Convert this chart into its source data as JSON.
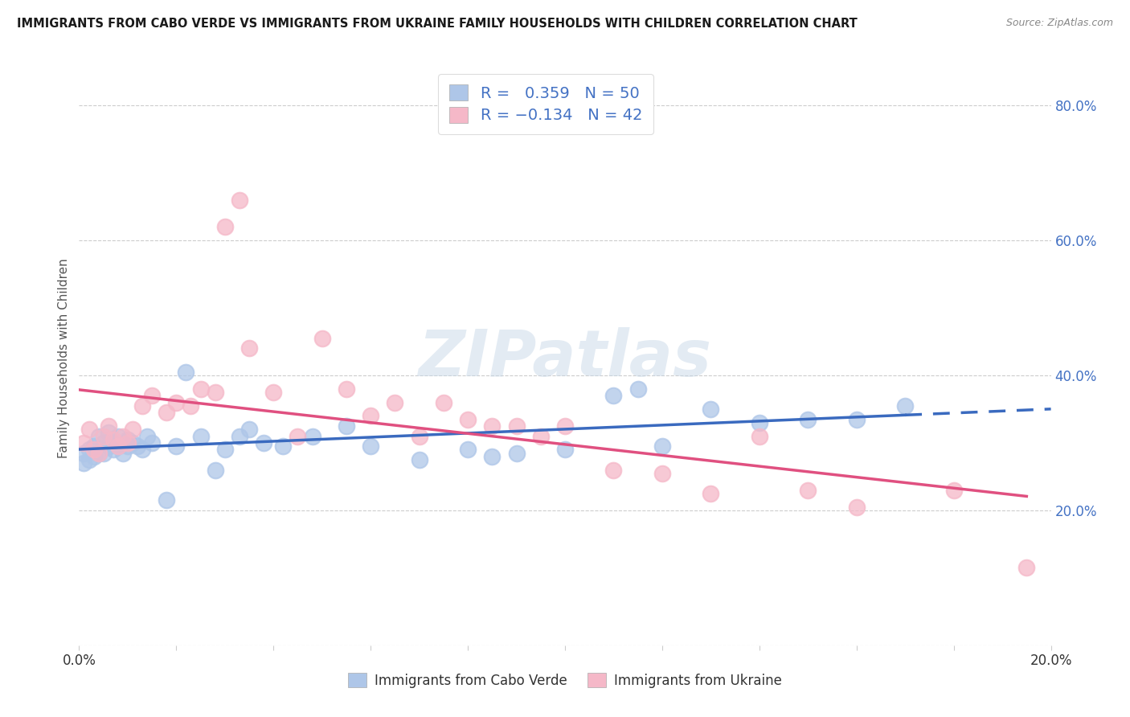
{
  "title": "IMMIGRANTS FROM CABO VERDE VS IMMIGRANTS FROM UKRAINE FAMILY HOUSEHOLDS WITH CHILDREN CORRELATION CHART",
  "source": "Source: ZipAtlas.com",
  "ylabel_left": "Family Households with Children",
  "xmin": 0.0,
  "xmax": 0.2,
  "ymin": 0.0,
  "ymax": 0.85,
  "R_cabo": 0.359,
  "N_cabo": 50,
  "R_ukraine": -0.134,
  "N_ukraine": 42,
  "cabo_color": "#aec6e8",
  "ukraine_color": "#f5b8c8",
  "cabo_line_color": "#3a6abf",
  "ukraine_line_color": "#e05080",
  "legend_text_color": "#4472c4",
  "legend_label_color": "#333333",
  "cabo_scatter_x": [
    0.001,
    0.001,
    0.002,
    0.002,
    0.003,
    0.003,
    0.004,
    0.004,
    0.005,
    0.005,
    0.006,
    0.006,
    0.007,
    0.007,
    0.008,
    0.008,
    0.009,
    0.01,
    0.01,
    0.011,
    0.012,
    0.013,
    0.014,
    0.015,
    0.018,
    0.02,
    0.022,
    0.025,
    0.028,
    0.03,
    0.033,
    0.035,
    0.038,
    0.042,
    0.048,
    0.055,
    0.06,
    0.07,
    0.08,
    0.085,
    0.09,
    0.1,
    0.11,
    0.115,
    0.12,
    0.13,
    0.14,
    0.15,
    0.16,
    0.17
  ],
  "cabo_scatter_y": [
    0.285,
    0.27,
    0.29,
    0.275,
    0.295,
    0.28,
    0.31,
    0.285,
    0.3,
    0.285,
    0.315,
    0.295,
    0.3,
    0.29,
    0.31,
    0.295,
    0.285,
    0.305,
    0.295,
    0.3,
    0.295,
    0.29,
    0.31,
    0.3,
    0.215,
    0.295,
    0.405,
    0.31,
    0.26,
    0.29,
    0.31,
    0.32,
    0.3,
    0.295,
    0.31,
    0.325,
    0.295,
    0.275,
    0.29,
    0.28,
    0.285,
    0.29,
    0.37,
    0.38,
    0.295,
    0.35,
    0.33,
    0.335,
    0.335,
    0.355
  ],
  "ukraine_scatter_x": [
    0.001,
    0.002,
    0.003,
    0.004,
    0.005,
    0.006,
    0.007,
    0.008,
    0.009,
    0.01,
    0.011,
    0.013,
    0.015,
    0.018,
    0.02,
    0.023,
    0.025,
    0.028,
    0.03,
    0.033,
    0.035,
    0.04,
    0.045,
    0.05,
    0.055,
    0.06,
    0.065,
    0.07,
    0.075,
    0.08,
    0.085,
    0.09,
    0.095,
    0.1,
    0.11,
    0.12,
    0.13,
    0.14,
    0.15,
    0.16,
    0.18,
    0.195
  ],
  "ukraine_scatter_y": [
    0.3,
    0.32,
    0.29,
    0.285,
    0.31,
    0.325,
    0.305,
    0.295,
    0.31,
    0.3,
    0.32,
    0.355,
    0.37,
    0.345,
    0.36,
    0.355,
    0.38,
    0.375,
    0.62,
    0.66,
    0.44,
    0.375,
    0.31,
    0.455,
    0.38,
    0.34,
    0.36,
    0.31,
    0.36,
    0.335,
    0.325,
    0.325,
    0.31,
    0.325,
    0.26,
    0.255,
    0.225,
    0.31,
    0.23,
    0.205,
    0.23,
    0.115
  ]
}
